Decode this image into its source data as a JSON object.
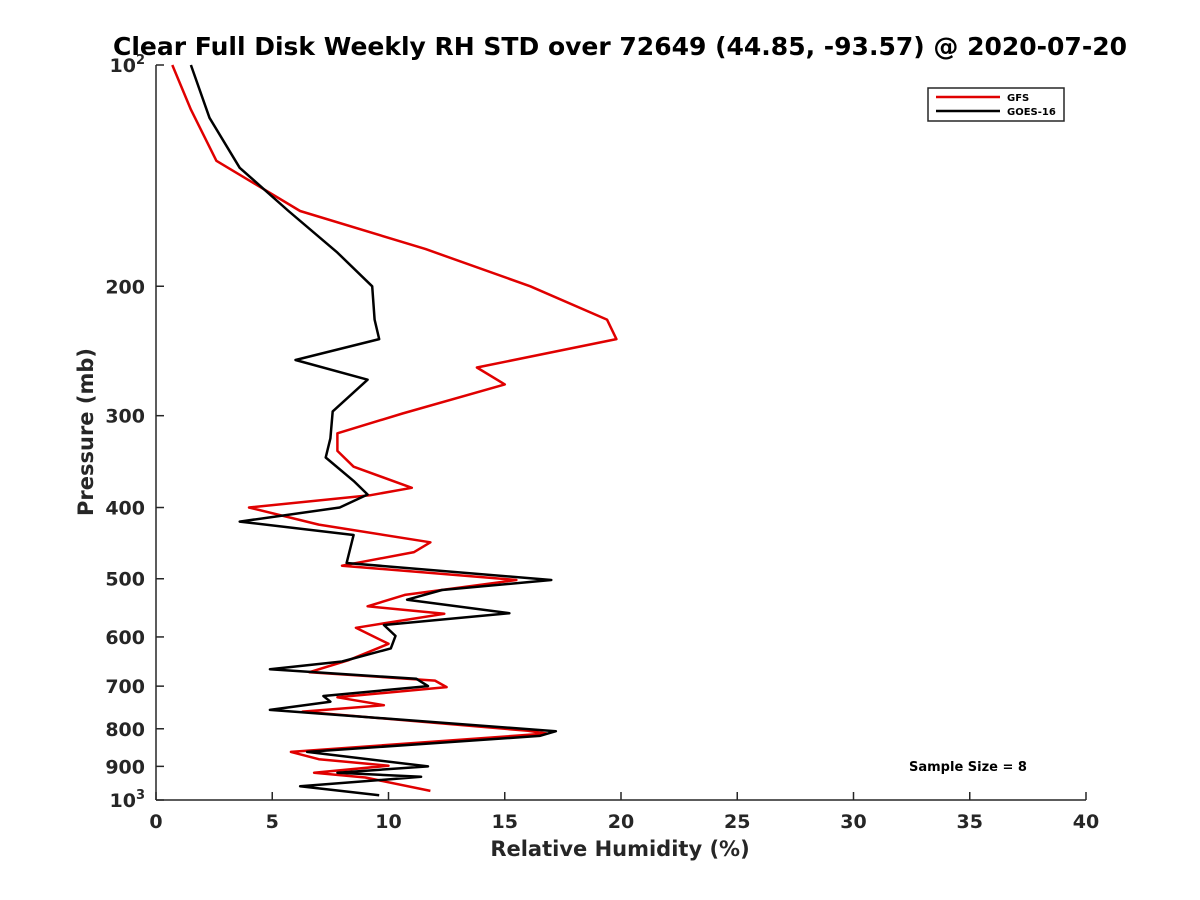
{
  "chart_data": {
    "type": "line",
    "title": "Clear Full Disk Weekly RH STD over 72649 (44.85, -93.57) @ 2020-07-20",
    "xlabel": "Relative Humidity (%)",
    "ylabel": "Pressure (mb)",
    "xlim": [
      0,
      40
    ],
    "ylim": [
      100,
      1000
    ],
    "y_scale": "log",
    "y_reversed": true,
    "x_ticks": [
      "0",
      "5",
      "10",
      "15",
      "20",
      "25",
      "30",
      "35",
      "40"
    ],
    "y_ticks": [
      {
        "value": 100,
        "base": "10",
        "exp": "2"
      },
      {
        "value": 200,
        "label": "200"
      },
      {
        "value": 300,
        "label": "300"
      },
      {
        "value": 400,
        "label": "400"
      },
      {
        "value": 500,
        "label": "500"
      },
      {
        "value": 600,
        "label": "600"
      },
      {
        "value": 700,
        "label": "700"
      },
      {
        "value": 800,
        "label": "800"
      },
      {
        "value": 900,
        "label": "900"
      },
      {
        "value": 1000,
        "base": "10",
        "exp": "3"
      }
    ],
    "grid": false,
    "legend_position": "top-right",
    "annotation": "Sample Size = 8",
    "series": [
      {
        "name": "GFS",
        "color": "#e00000",
        "points": [
          [
            0.7,
            100
          ],
          [
            1.5,
            115
          ],
          [
            2.6,
            135
          ],
          [
            6.2,
            158
          ],
          [
            11.6,
            178
          ],
          [
            16.1,
            200
          ],
          [
            19.4,
            222
          ],
          [
            19.8,
            236
          ],
          [
            13.8,
            258
          ],
          [
            15.0,
            272
          ],
          [
            10.6,
            298
          ],
          [
            7.8,
            317
          ],
          [
            7.8,
            335
          ],
          [
            8.5,
            352
          ],
          [
            11.0,
            376
          ],
          [
            9.2,
            385
          ],
          [
            4.0,
            400
          ],
          [
            7.0,
            422
          ],
          [
            11.8,
            446
          ],
          [
            11.1,
            460
          ],
          [
            8.0,
            480
          ],
          [
            15.5,
            502
          ],
          [
            10.7,
            526
          ],
          [
            9.1,
            545
          ],
          [
            12.4,
            558
          ],
          [
            8.6,
            583
          ],
          [
            10.0,
            613
          ],
          [
            8.3,
            645
          ],
          [
            6.6,
            670
          ],
          [
            12.0,
            688
          ],
          [
            12.5,
            702
          ],
          [
            7.8,
            725
          ],
          [
            9.8,
            743
          ],
          [
            6.3,
            758
          ],
          [
            16.0,
            805
          ],
          [
            16.8,
            812
          ],
          [
            5.8,
            860
          ],
          [
            7.0,
            880
          ],
          [
            10.0,
            898
          ],
          [
            6.8,
            918
          ],
          [
            9.0,
            932
          ],
          [
            11.8,
            972
          ]
        ]
      },
      {
        "name": "GOES-16",
        "color": "#000000",
        "points": [
          [
            1.5,
            100
          ],
          [
            2.3,
            118
          ],
          [
            3.6,
            138
          ],
          [
            5.7,
            158
          ],
          [
            7.8,
            180
          ],
          [
            9.3,
            200
          ],
          [
            9.4,
            222
          ],
          [
            9.6,
            236
          ],
          [
            6.0,
            252
          ],
          [
            9.1,
            268
          ],
          [
            7.6,
            296
          ],
          [
            7.5,
            322
          ],
          [
            7.3,
            342
          ],
          [
            8.5,
            368
          ],
          [
            9.1,
            384
          ],
          [
            7.9,
            400
          ],
          [
            3.6,
            418
          ],
          [
            8.5,
            436
          ],
          [
            8.2,
            476
          ],
          [
            17.0,
            502
          ],
          [
            12.3,
            518
          ],
          [
            10.8,
            534
          ],
          [
            15.2,
            557
          ],
          [
            9.8,
            578
          ],
          [
            10.3,
            598
          ],
          [
            10.1,
            622
          ],
          [
            8.0,
            648
          ],
          [
            4.9,
            664
          ],
          [
            11.2,
            684
          ],
          [
            11.7,
            700
          ],
          [
            7.2,
            722
          ],
          [
            7.5,
            735
          ],
          [
            4.9,
            754
          ],
          [
            17.2,
            806
          ],
          [
            16.5,
            818
          ],
          [
            6.5,
            860
          ],
          [
            11.7,
            900
          ],
          [
            7.8,
            918
          ],
          [
            11.4,
            930
          ],
          [
            6.2,
            958
          ],
          [
            9.6,
            985
          ]
        ]
      }
    ]
  }
}
